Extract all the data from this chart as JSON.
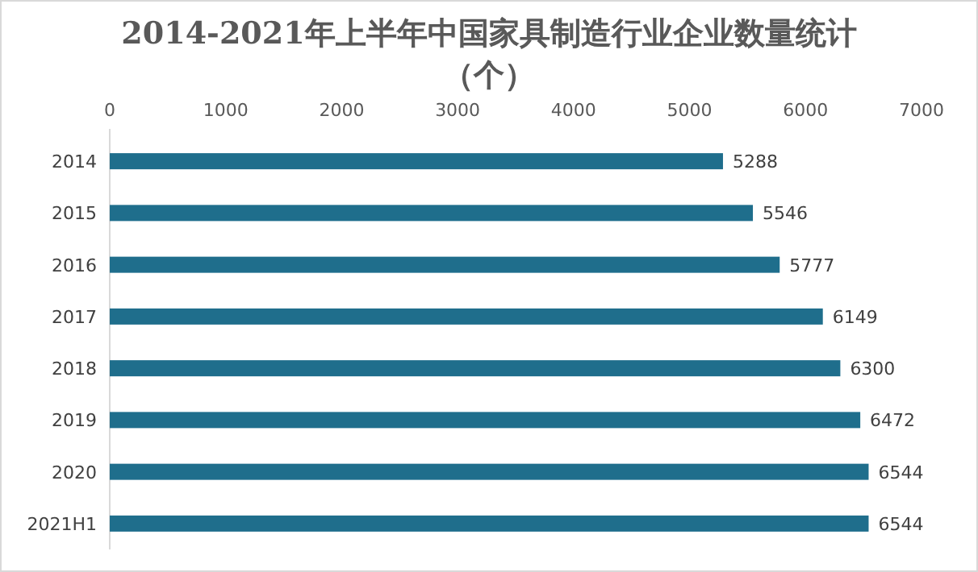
{
  "chart_data": {
    "type": "bar",
    "orientation": "horizontal",
    "title": "2014-2021年上半年中国家具制造行业企业数量统计（个）",
    "categories": [
      "2014",
      "2015",
      "2016",
      "2017",
      "2018",
      "2019",
      "2020",
      "2021H1"
    ],
    "values": [
      5288,
      5546,
      5777,
      6149,
      6300,
      6472,
      6544,
      6544
    ],
    "color": "#1f6e8c",
    "data_labels": true,
    "grid": false,
    "xlim": [
      0,
      7000
    ],
    "xticks": [
      0,
      1000,
      2000,
      3000,
      4000,
      5000,
      6000,
      7000
    ]
  }
}
